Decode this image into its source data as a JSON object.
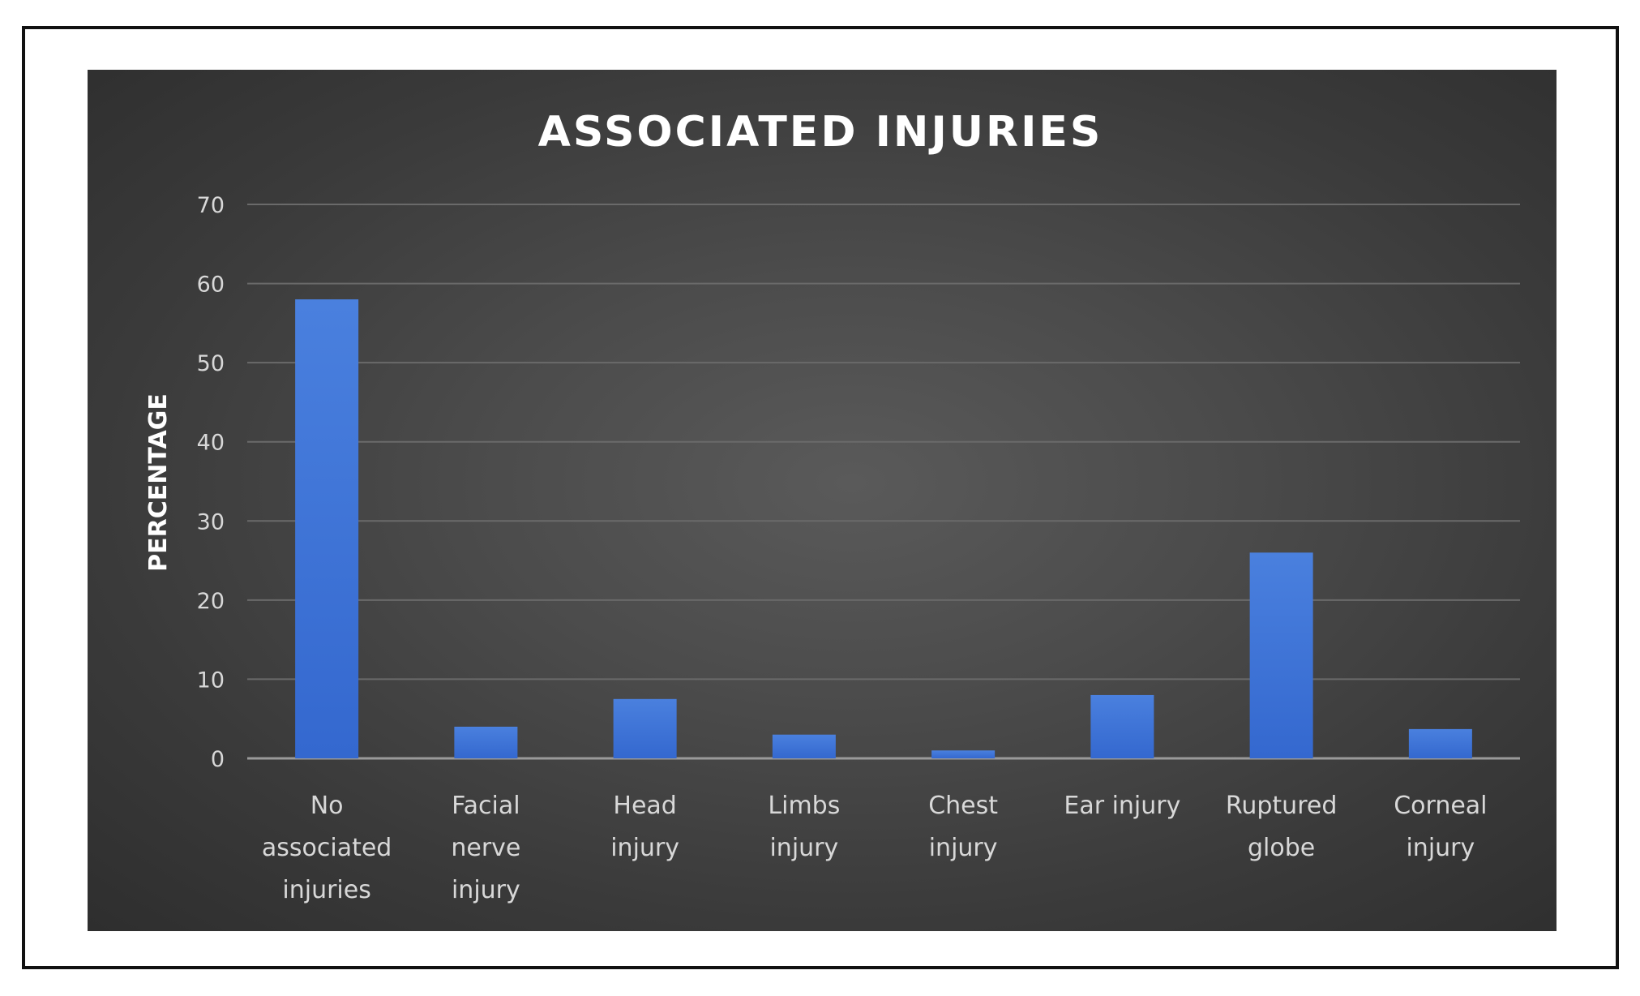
{
  "chart_data": {
    "type": "bar",
    "title": "ASSOCIATED INJURIES",
    "ylabel": "PERCENTAGE",
    "xlabel": "",
    "ylim": [
      0,
      70
    ],
    "yticks": [
      "0",
      "10",
      "20",
      "30",
      "40",
      "50",
      "60",
      "70"
    ],
    "grid": true,
    "legend": "none",
    "categories": [
      [
        "No",
        "associated",
        "injuries"
      ],
      [
        "Facial",
        "nerve",
        "injury"
      ],
      [
        "Head",
        "injury"
      ],
      [
        "Limbs",
        "injury"
      ],
      [
        "Chest",
        "injury"
      ],
      [
        "Ear injury"
      ],
      [
        "Ruptured",
        "globe"
      ],
      [
        "Corneal",
        "injury"
      ]
    ],
    "values": [
      58,
      4,
      7.5,
      3,
      1,
      8,
      26,
      3.7
    ],
    "colors": {
      "bar": "#3b73d9",
      "bar_light": "#5a8fe6",
      "grid": "#6a6a6a",
      "axis": "#9a9a9a"
    }
  }
}
